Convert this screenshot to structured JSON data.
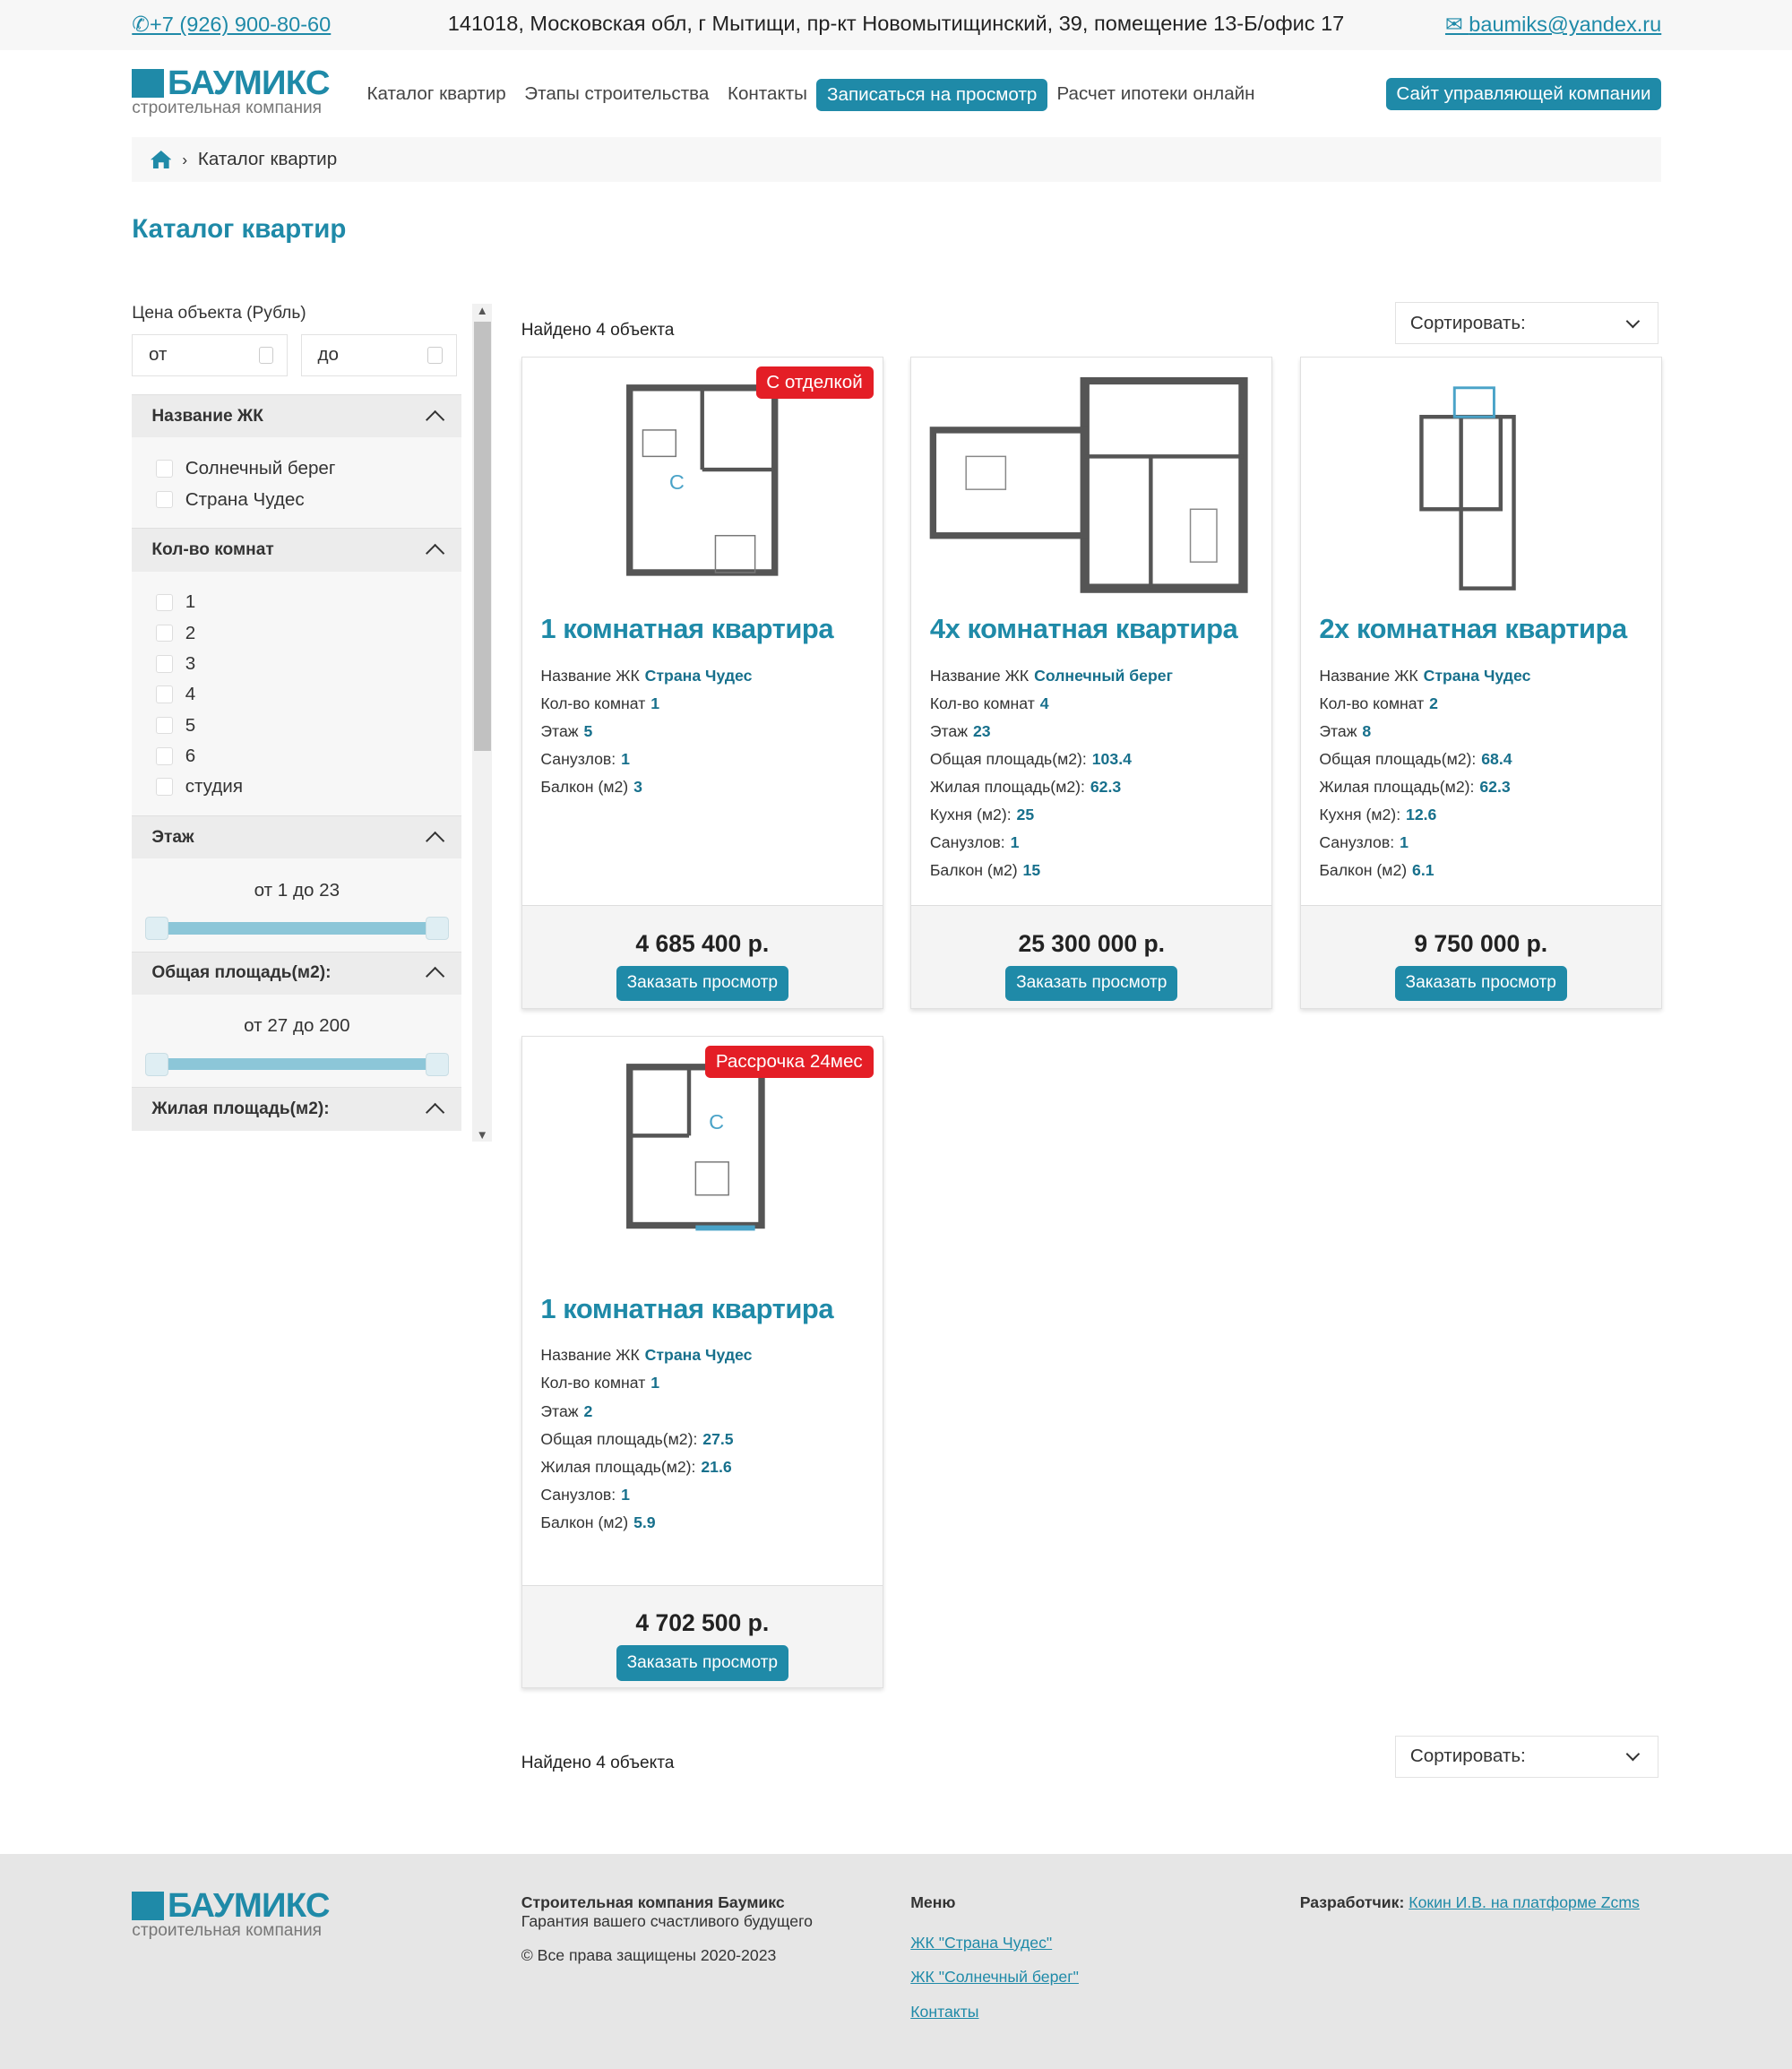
{
  "topbar": {
    "phone": "+7 (926) 900-80-60",
    "address": "141018, Московская обл, г Мытищи, пр-кт Новомытищинский, 39, помещение 13-Б/офис 17",
    "email": "baumiks@yandex.ru"
  },
  "logo": {
    "name": "БАУМИКС",
    "tagline": "строительная компания"
  },
  "nav": {
    "items": [
      "Каталог квартир",
      "Этапы строительства",
      "Контакты",
      "Записаться на просмотр",
      "Расчет ипотеки онлайн"
    ],
    "active": 3,
    "manager_button": "Сайт управляющей компании"
  },
  "breadcrumb": {
    "current": "Каталог квартир"
  },
  "page_title": "Каталог квартир",
  "filters": {
    "price": {
      "label": "Цена объекта (Рубль)",
      "from_placeholder": "от",
      "to_placeholder": "до"
    },
    "complex": {
      "title": "Название ЖК",
      "options": [
        "Солнечный берег",
        "Страна Чудес"
      ]
    },
    "rooms": {
      "title": "Кол-во комнат",
      "options": [
        "1",
        "2",
        "3",
        "4",
        "5",
        "6",
        "студия"
      ]
    },
    "floor": {
      "title": "Этаж",
      "range": "от 1 до 23",
      "min": 1,
      "max": 23
    },
    "area": {
      "title": "Общая площадь(м2):",
      "range": "от 27 до 200",
      "min": 27,
      "max": 200
    },
    "living": {
      "title": "Жилая площадь(м2):"
    }
  },
  "results": {
    "found": "Найдено 4 объекта",
    "sort_label": "Сортировать:"
  },
  "colors": {
    "accent": "#1f8aa8",
    "value": "#17708c",
    "badge": "#e41e26"
  },
  "cards": [
    {
      "badge": "С отделкой",
      "title": "1 комнатная квартира",
      "rows": [
        [
          "Название ЖК",
          "Страна Чудес"
        ],
        [
          "Кол-во комнат",
          "1"
        ],
        [
          "Этаж",
          "5"
        ],
        [
          "Санузлов:",
          "1"
        ],
        [
          "Балкон (м2)",
          "3"
        ]
      ],
      "price": "4 685 400 р.",
      "button": "Заказать просмотр"
    },
    {
      "badge": "",
      "title": "4х комнатная квартира",
      "rows": [
        [
          "Название ЖК",
          "Солнечный берег"
        ],
        [
          "Кол-во комнат",
          "4"
        ],
        [
          "Этаж",
          "23"
        ],
        [
          "Общая площадь(м2):",
          "103.4"
        ],
        [
          "Жилая площадь(м2):",
          "62.3"
        ],
        [
          "Кухня (м2):",
          "25"
        ],
        [
          "Санузлов:",
          "1"
        ],
        [
          "Балкон (м2)",
          "15"
        ]
      ],
      "price": "25 300 000 р.",
      "button": "Заказать просмотр"
    },
    {
      "badge": "",
      "title": "2х комнатная квартира",
      "rows": [
        [
          "Название ЖК",
          "Страна Чудес"
        ],
        [
          "Кол-во комнат",
          "2"
        ],
        [
          "Этаж",
          "8"
        ],
        [
          "Общая площадь(м2):",
          "68.4"
        ],
        [
          "Жилая площадь(м2):",
          "62.3"
        ],
        [
          "Кухня (м2):",
          "12.6"
        ],
        [
          "Санузлов:",
          "1"
        ],
        [
          "Балкон (м2)",
          "6.1"
        ]
      ],
      "price": "9 750 000 р.",
      "button": "Заказать просмотр"
    },
    {
      "badge": "Рассрочка 24мес",
      "title": "1 комнатная квартира",
      "rows": [
        [
          "Название ЖК",
          "Страна Чудес"
        ],
        [
          "Кол-во комнат",
          "1"
        ],
        [
          "Этаж",
          "2"
        ],
        [
          "Общая площадь(м2):",
          "27.5"
        ],
        [
          "Жилая площадь(м2):",
          "21.6"
        ],
        [
          "Санузлов:",
          "1"
        ],
        [
          "Балкон (м2)",
          "5.9"
        ]
      ],
      "price": "4 702 500 р.",
      "button": "Заказать просмотр"
    }
  ],
  "footer": {
    "company": "Строительная компания Баумикс",
    "slogan": "Гарантия вашего счастливого будущего",
    "copyright": "© Все права защищены 2020-2023",
    "menu_title": "Меню",
    "menu": [
      "ЖК \"Страна Чудес\"",
      "ЖК \"Солнечный берег\"",
      "Контакты"
    ],
    "dev_label": "Разработчик:",
    "dev_link": "Кокин И.В. на платформе Zcms"
  }
}
